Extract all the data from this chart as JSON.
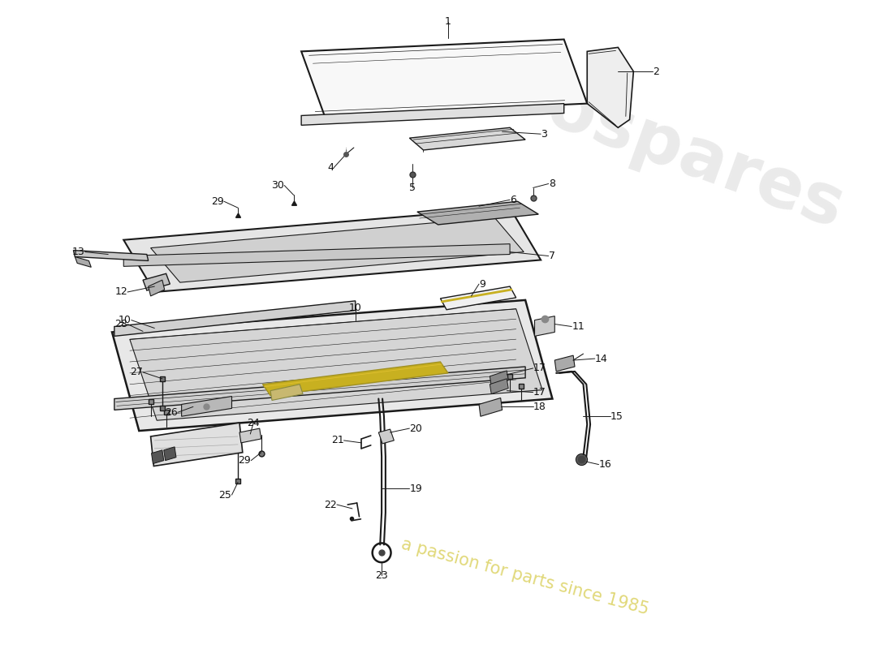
{
  "background_color": "#ffffff",
  "line_color": "#1a1a1a",
  "watermark1": "eurospares",
  "watermark2": "a passion for parts since 1985",
  "wm_color1": "#cccccc",
  "wm_color2": "#d4c840",
  "fig_width": 11.0,
  "fig_height": 8.0,
  "dpi": 100
}
